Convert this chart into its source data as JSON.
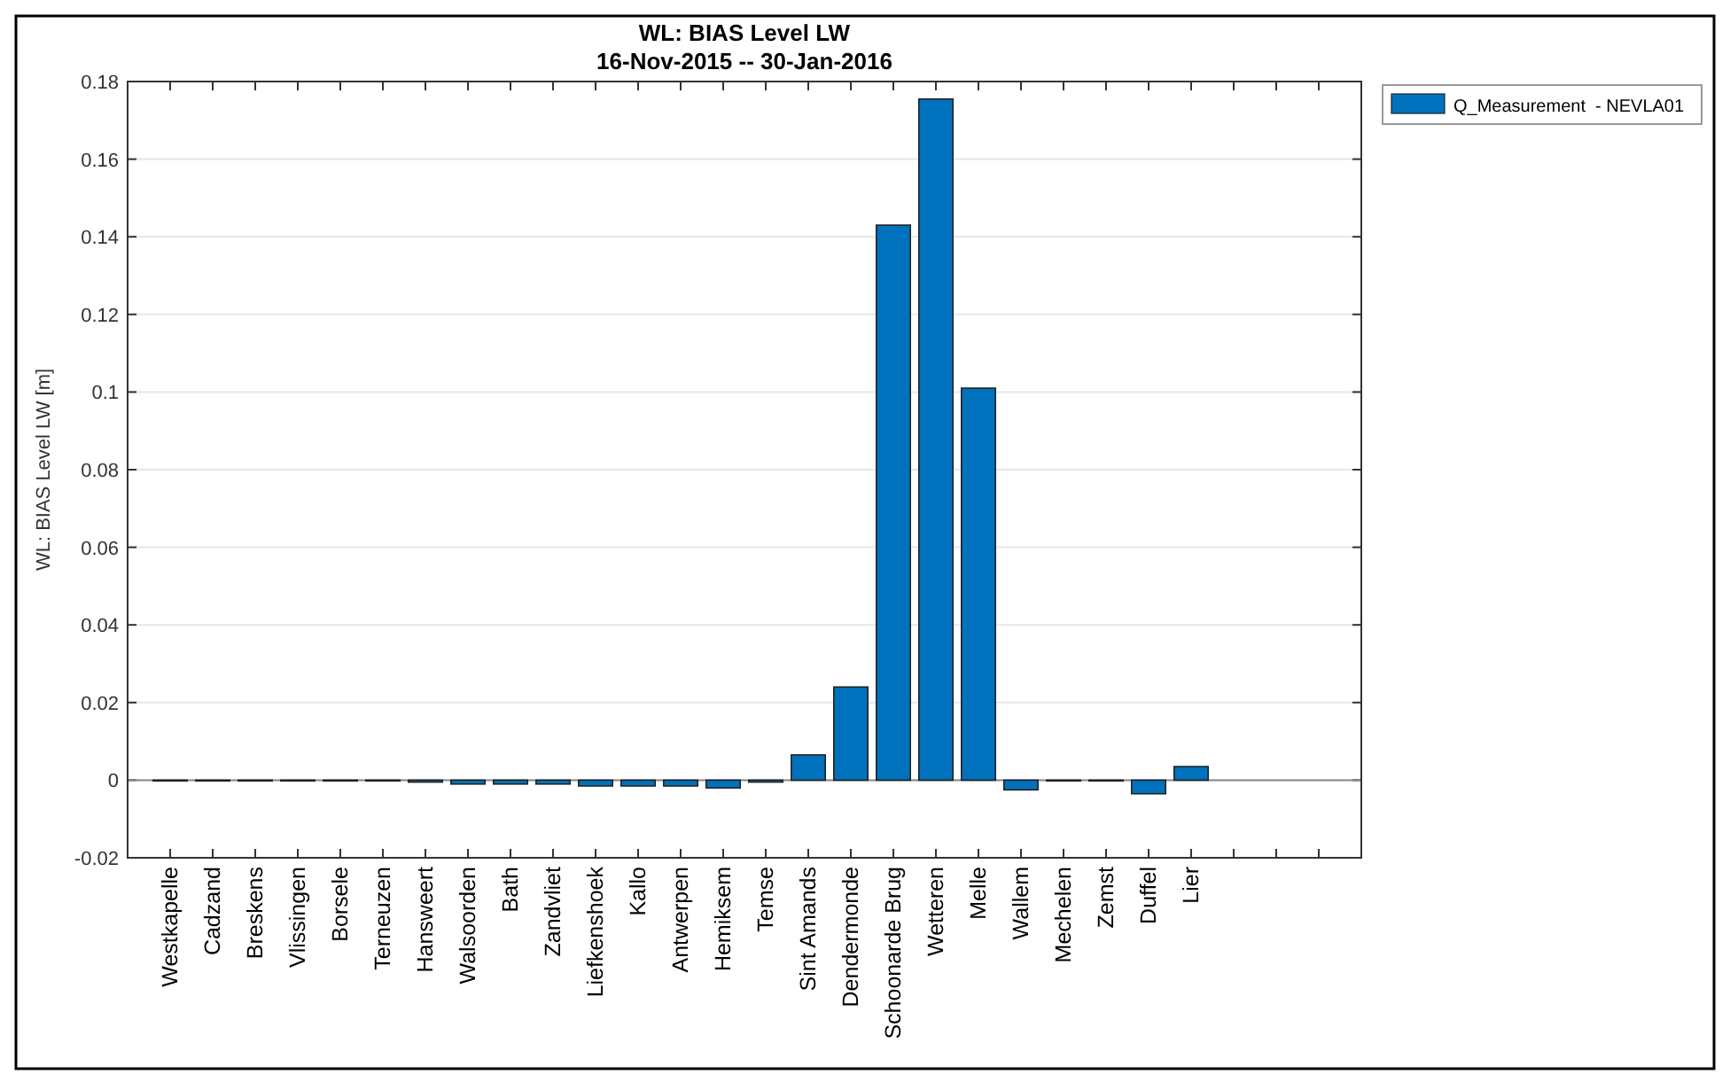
{
  "chart_data": {
    "type": "bar",
    "title": "WL: BIAS Level LW",
    "subtitle": "16-Nov-2015 -- 30-Jan-2016",
    "ylabel": "WL: BIAS Level LW [m]",
    "categories": [
      "Westkapelle",
      "Cadzand",
      "Breskens",
      "Vlissingen",
      "Borsele",
      "Terneuzen",
      "Hansweert",
      "Walsoorden",
      "Bath",
      "Zandvliet",
      "Liefkenshoek",
      "Kallo",
      "Antwerpen",
      "Hemiksem",
      "Temse",
      "Sint Amands",
      "Dendermonde",
      "Schoonarde Brug",
      "Wetteren",
      "Melle",
      "Wallem",
      "Mechelen",
      "Zemst",
      "Duffel",
      "Lier",
      null,
      null,
      null
    ],
    "series": [
      {
        "name": "Q_Measurement  - NEVLA01",
        "color": "#0072bd",
        "values": [
          -0.0002,
          -0.0002,
          -0.0002,
          -0.0002,
          -0.0002,
          -0.0002,
          -0.0005,
          -0.001,
          -0.001,
          -0.001,
          -0.0015,
          -0.0015,
          -0.0015,
          -0.002,
          -0.0005,
          0.0065,
          0.024,
          0.143,
          0.1755,
          0.101,
          -0.0025,
          -0.0002,
          -0.0002,
          -0.0035,
          0.0035,
          null,
          null,
          null
        ]
      }
    ],
    "ylim": [
      -0.02,
      0.18
    ],
    "yticks": [
      -0.02,
      0,
      0.02,
      0.04,
      0.06,
      0.08,
      0.1,
      0.12,
      0.14,
      0.16,
      0.18
    ],
    "grid": "y",
    "legend": "top right"
  }
}
